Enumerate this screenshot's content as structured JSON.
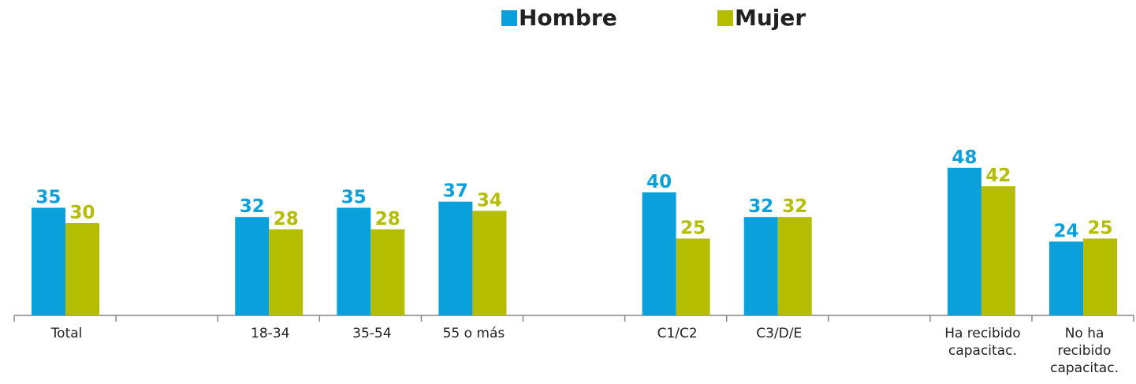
{
  "chart_data": {
    "type": "bar",
    "categories": [
      "Total",
      null,
      "18-34",
      "35-54",
      "55 o más",
      null,
      "C1/C2",
      "C3/D/E",
      null,
      "Ha recibido capacitac.",
      "No ha recibido capacitac."
    ],
    "series": [
      {
        "name": "Hombre",
        "color": "#0aa0dc",
        "values": [
          35,
          null,
          32,
          35,
          37,
          null,
          40,
          32,
          null,
          48,
          24
        ]
      },
      {
        "name": "Mujer",
        "color": "#b5bd00",
        "values": [
          30,
          null,
          28,
          28,
          34,
          null,
          25,
          32,
          null,
          42,
          25
        ]
      }
    ]
  }
}
